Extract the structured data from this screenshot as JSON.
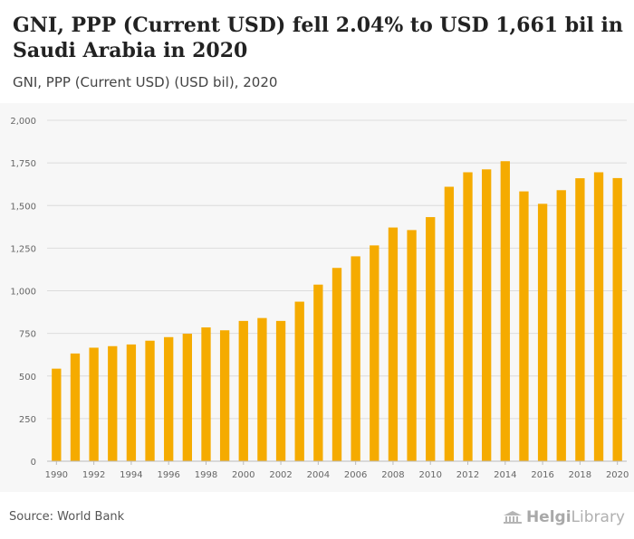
{
  "header": {
    "title": "GNI, PPP (Current USD) fell 2.04% to USD 1,661 bil in Saudi Arabia in 2020",
    "subtitle": "GNI, PPP (Current USD) (USD bil), 2020"
  },
  "footer": {
    "source": "Source: World Bank",
    "logo_bold": "Helgi",
    "logo_rest": "Library"
  },
  "colors": {
    "bar": "#f5ab00",
    "grid": "#dcdcdc",
    "axis_text": "#666666",
    "chart_bg": "#f7f7f7"
  },
  "chart_data": {
    "type": "bar",
    "title": "GNI, PPP (Current USD) fell 2.04% to USD 1,661 bil in Saudi Arabia in 2020",
    "subtitle": "GNI, PPP (Current USD) (USD bil), 2020",
    "xlabel": "",
    "ylabel": "",
    "ylim": [
      0,
      2000
    ],
    "yticks": [
      0,
      250,
      500,
      750,
      1000,
      1250,
      1500,
      1750,
      2000
    ],
    "ytick_labels": [
      "0",
      "250",
      "500",
      "750",
      "1,000",
      "1,250",
      "1,500",
      "1,750",
      "2,000"
    ],
    "categories": [
      "1990",
      "1991",
      "1992",
      "1993",
      "1994",
      "1995",
      "1996",
      "1997",
      "1998",
      "1999",
      "2000",
      "2001",
      "2002",
      "2003",
      "2004",
      "2005",
      "2006",
      "2007",
      "2008",
      "2009",
      "2010",
      "2011",
      "2012",
      "2013",
      "2014",
      "2015",
      "2016",
      "2017",
      "2018",
      "2019",
      "2020"
    ],
    "xtick_labels": [
      "1990",
      "1992",
      "1994",
      "1996",
      "1998",
      "2000",
      "2002",
      "2004",
      "2006",
      "2008",
      "2010",
      "2012",
      "2014",
      "2016",
      "2018",
      "2020"
    ],
    "values": [
      543,
      632,
      666,
      675,
      685,
      707,
      728,
      748,
      785,
      768,
      823,
      840,
      823,
      936,
      1036,
      1134,
      1202,
      1266,
      1371,
      1356,
      1432,
      1610,
      1695,
      1712,
      1760,
      1583,
      1510,
      1590,
      1660,
      1695,
      1661
    ],
    "grid": true,
    "legend": "none"
  }
}
